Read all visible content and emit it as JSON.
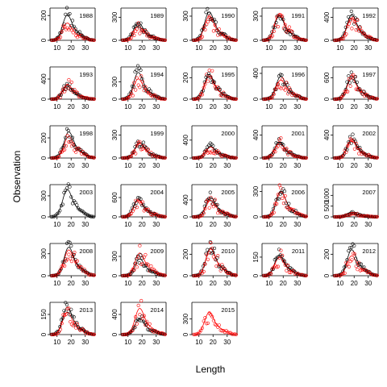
{
  "chart_data": {
    "type": "scatter",
    "xlabel": "Length",
    "ylabel": "Observation",
    "xticks": [
      10,
      20,
      30
    ],
    "xlim": [
      5,
      37
    ],
    "legend": "none",
    "colors": {
      "obs_black": "#000000",
      "obs_red": "#ff0000",
      "fit_black": "#000000",
      "fit_red": "#ff0000"
    },
    "panels": [
      {
        "year": "1988",
        "yticks": [
          0,
          200
        ],
        "ymax": 260,
        "black_peak": 220,
        "red_peak": 150,
        "peak_len": 17,
        "red_only": false
      },
      {
        "year": "1989",
        "yticks": [
          0,
          300
        ],
        "ymax": 420,
        "black_peak": 250,
        "red_peak": 200,
        "peak_len": 17,
        "red_only": false
      },
      {
        "year": "1990",
        "yticks": [
          0,
          300
        ],
        "ymax": 400,
        "black_peak": 380,
        "red_peak": 320,
        "peak_len": 17,
        "red_only": false
      },
      {
        "year": "1991",
        "yticks": [
          0,
          300
        ],
        "ymax": 400,
        "black_peak": 330,
        "red_peak": 360,
        "peak_len": 17,
        "red_only": false
      },
      {
        "year": "1992",
        "yticks": [
          0,
          400
        ],
        "ymax": 560,
        "black_peak": 480,
        "red_peak": 420,
        "peak_len": 18,
        "red_only": false
      },
      {
        "year": "1993",
        "yticks": [
          0,
          400
        ],
        "ymax": 640,
        "black_peak": 280,
        "red_peak": 320,
        "peak_len": 17,
        "red_only": false
      },
      {
        "year": "1994",
        "yticks": [
          0,
          300
        ],
        "ymax": 560,
        "black_peak": 500,
        "red_peak": 380,
        "peak_len": 17,
        "red_only": false
      },
      {
        "year": "1995",
        "yticks": [
          0,
          200
        ],
        "ymax": 300,
        "black_peak": 250,
        "red_peak": 230,
        "peak_len": 17,
        "red_only": false
      },
      {
        "year": "1996",
        "yticks": [
          0,
          400
        ],
        "ymax": 500,
        "black_peak": 380,
        "red_peak": 320,
        "peak_len": 18,
        "red_only": false
      },
      {
        "year": "1997",
        "yticks": [
          0,
          600
        ],
        "ymax": 900,
        "black_peak": 700,
        "red_peak": 620,
        "peak_len": 18,
        "red_only": false
      },
      {
        "year": "1998",
        "yticks": [
          0,
          200
        ],
        "ymax": 320,
        "black_peak": 280,
        "red_peak": 230,
        "peak_len": 18,
        "red_only": false
      },
      {
        "year": "1999",
        "yticks": [
          0,
          300
        ],
        "ymax": 420,
        "black_peak": 220,
        "red_peak": 200,
        "peak_len": 18,
        "red_only": false
      },
      {
        "year": "2000",
        "yticks": [
          0,
          400
        ],
        "ymax": 720,
        "black_peak": 280,
        "red_peak": 260,
        "peak_len": 18,
        "red_only": false
      },
      {
        "year": "2001",
        "yticks": [
          0,
          400
        ],
        "ymax": 560,
        "black_peak": 300,
        "red_peak": 280,
        "peak_len": 17,
        "red_only": false
      },
      {
        "year": "2002",
        "yticks": [
          0,
          400
        ],
        "ymax": 560,
        "black_peak": 360,
        "red_peak": 320,
        "peak_len": 18,
        "red_only": false
      },
      {
        "year": "2003",
        "yticks": [
          0,
          300
        ],
        "ymax": 460,
        "black_peak": 420,
        "red_peak": 0,
        "peak_len": 17,
        "red_only": false
      },
      {
        "year": "2004",
        "yticks": [
          0,
          600
        ],
        "ymax": 1000,
        "black_peak": 600,
        "red_peak": 560,
        "peak_len": 17,
        "red_only": false
      },
      {
        "year": "2005",
        "yticks": [
          0,
          400
        ],
        "ymax": 760,
        "black_peak": 500,
        "red_peak": 420,
        "peak_len": 18,
        "red_only": false
      },
      {
        "year": "2006",
        "yticks": [
          0,
          300
        ],
        "ymax": 380,
        "black_peak": 330,
        "red_peak": 320,
        "peak_len": 18,
        "red_only": false
      },
      {
        "year": "2007",
        "yticks": [
          0,
          500,
          1000
        ],
        "ymax": 1500,
        "black_peak": 200,
        "red_peak": 220,
        "peak_len": 18,
        "red_only": false
      },
      {
        "year": "2008",
        "yticks": [
          0,
          300
        ],
        "ymax": 440,
        "black_peak": 420,
        "red_peak": 380,
        "peak_len": 18,
        "red_only": false
      },
      {
        "year": "2009",
        "yticks": [
          0,
          300
        ],
        "ymax": 500,
        "black_peak": 280,
        "red_peak": 380,
        "peak_len": 18,
        "red_only": false
      },
      {
        "year": "2010",
        "yticks": [
          0,
          200
        ],
        "ymax": 300,
        "black_peak": 280,
        "red_peak": 270,
        "peak_len": 18,
        "red_only": false
      },
      {
        "year": "2011",
        "yticks": [
          0,
          150
        ],
        "ymax": 260,
        "black_peak": 180,
        "red_peak": 160,
        "peak_len": 17,
        "red_only": false
      },
      {
        "year": "2012",
        "yticks": [
          0,
          200
        ],
        "ymax": 300,
        "black_peak": 260,
        "red_peak": 200,
        "peak_len": 18,
        "red_only": false
      },
      {
        "year": "2013",
        "yticks": [
          0,
          150
        ],
        "ymax": 240,
        "black_peak": 220,
        "red_peak": 180,
        "peak_len": 17,
        "red_only": false
      },
      {
        "year": "2014",
        "yticks": [
          0,
          400
        ],
        "ymax": 640,
        "black_peak": 350,
        "red_peak": 560,
        "peak_len": 18,
        "red_only": false
      },
      {
        "year": "2015",
        "yticks": [
          0,
          300
        ],
        "ymax": 620,
        "black_peak": 0,
        "red_peak": 460,
        "peak_len": 17,
        "red_only": true
      }
    ]
  }
}
